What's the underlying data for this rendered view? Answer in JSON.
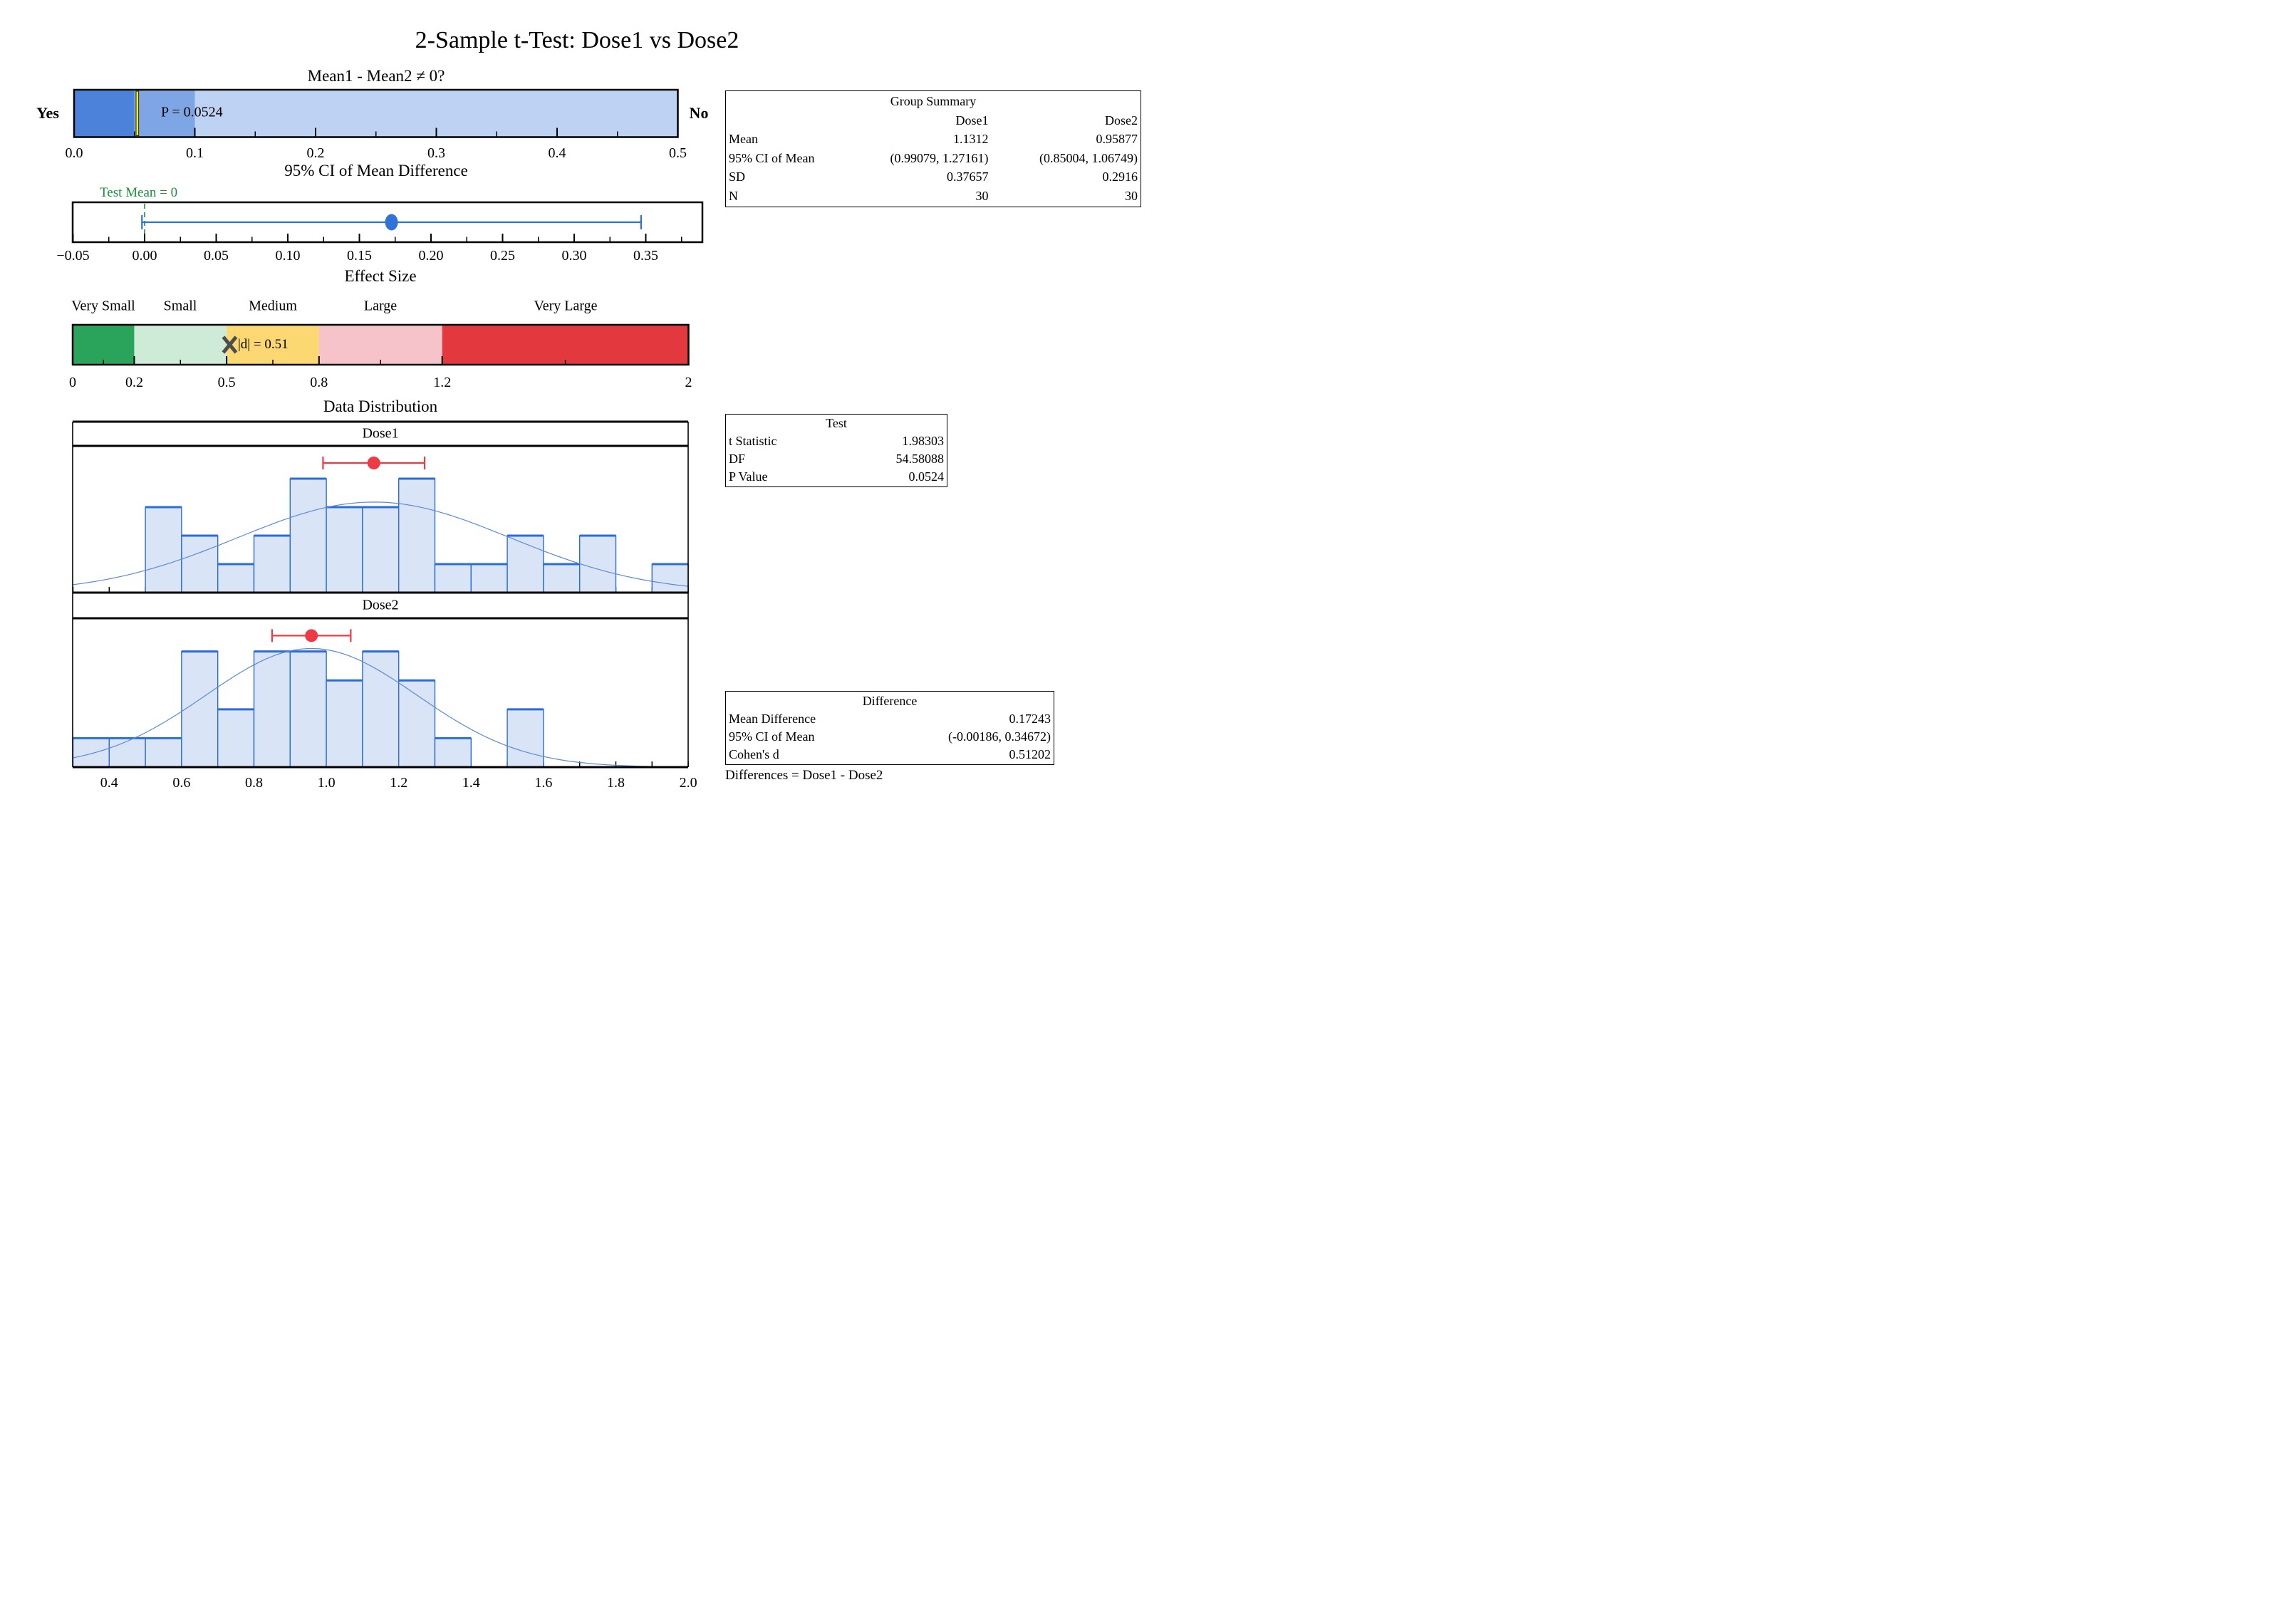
{
  "title": "2-Sample t-Test: Dose1 vs Dose2",
  "distribution": {
    "title": "Data Distribution",
    "x_tick_values": [
      0.4,
      0.6,
      0.8,
      1.0,
      1.2,
      1.4,
      1.6,
      1.8,
      2.0
    ],
    "x_tick_labels": [
      "0.4",
      "0.6",
      "0.8",
      "1.0",
      "1.2",
      "1.4",
      "1.6",
      "1.8",
      "2.0"
    ],
    "minor_tick_step": 0.1
  },
  "colors": {
    "histogram_fill": "#d9e5f7",
    "histogram_edge": "#2a6cd8",
    "normal_curve": "#5b89dd",
    "mean_marker": "#ee3a44",
    "axis": "#000000"
  },
  "chart_data": [
    {
      "type": "scale-bar",
      "name": "p-value-decision-bar",
      "title": "Mean1 - Mean2 ≠ 0?",
      "left_label": "Yes",
      "right_label": "No",
      "xlim": [
        0,
        0.5
      ],
      "marker_value": 0.0524,
      "marker_label": "P = 0.0524",
      "marker_color": "#fdff00",
      "major_ticks": [
        0,
        0.1,
        0.2,
        0.3,
        0.4,
        0.5
      ],
      "tick_labels": [
        "0.0",
        "0.1",
        "0.2",
        "0.3",
        "0.4",
        "0.5"
      ],
      "minor_ticks": [
        0.05,
        0.15,
        0.25,
        0.35,
        0.45
      ],
      "segments": [
        {
          "from": 0,
          "to": 0.05,
          "color": "#4d82da"
        },
        {
          "from": 0.05,
          "to": 0.1,
          "color": "#7fa6e4"
        },
        {
          "from": 0.1,
          "to": 0.5,
          "color": "#bed3f4"
        }
      ]
    },
    {
      "type": "interval",
      "name": "ci-of-mean-difference",
      "title": "95% CI of Mean Difference",
      "ref_label": "Test Mean = 0",
      "ref_value": 0,
      "ref_color": "#169339",
      "mean": 0.17243,
      "ci": [
        -0.00186,
        0.34672
      ],
      "color": "#2e74d8",
      "ticks": [
        -0.05,
        0,
        0.05,
        0.1,
        0.15,
        0.2,
        0.25,
        0.3,
        0.35
      ],
      "tick_labels": [
        "−0.05",
        "0.00",
        "0.05",
        "0.10",
        "0.15",
        "0.20",
        "0.25",
        "0.30",
        "0.35"
      ],
      "minor_ticks": [
        -0.025,
        0.025,
        0.075,
        0.125,
        0.175,
        0.225,
        0.275,
        0.325,
        0.375
      ]
    },
    {
      "type": "category-scale",
      "name": "effect-size-scale",
      "title": "Effect Size",
      "marker_value": 0.51,
      "marker_label": "|d| = 0.51",
      "marker_color": "#4d4d4d",
      "xlim": [
        0,
        2
      ],
      "ticks": [
        0,
        0.2,
        0.5,
        0.8,
        1.2,
        2
      ],
      "tick_labels": [
        "0",
        "0.2",
        "0.5",
        "0.8",
        "1.2",
        "2"
      ],
      "minor_ticks": [
        0.1,
        0.35,
        0.65,
        1.0,
        1.6
      ],
      "categories": [
        {
          "label": "Very Small",
          "from": 0,
          "to": 0.2,
          "color": "#2aa45b"
        },
        {
          "label": "Small",
          "from": 0.2,
          "to": 0.5,
          "color": "#cdebd6"
        },
        {
          "label": "Medium",
          "from": 0.5,
          "to": 0.8,
          "color": "#fbd871"
        },
        {
          "label": "Large",
          "from": 0.8,
          "to": 1.2,
          "color": "#f6c3ca"
        },
        {
          "label": "Very Large",
          "from": 1.2,
          "to": 2,
          "color": "#e4383f"
        }
      ]
    },
    {
      "type": "histogram",
      "name": "dose1-distribution",
      "group": "Dose1",
      "n": 30,
      "mean": 1.1312,
      "sd": 0.37657,
      "mean_ci": [
        0.99079,
        1.27161
      ],
      "bin_start": 0.5,
      "bin_width": 0.1,
      "counts": [
        3,
        2,
        1,
        2,
        4,
        3,
        3,
        4,
        1,
        1,
        2,
        1,
        2,
        0,
        1
      ],
      "xlim": [
        0.3,
        2.0
      ],
      "ylim": [
        0,
        5.15
      ],
      "marker_height": 4.55
    },
    {
      "type": "histogram",
      "name": "dose2-distribution",
      "group": "Dose2",
      "n": 30,
      "mean": 0.95877,
      "sd": 0.2916,
      "mean_ci": [
        0.85004,
        1.06749
      ],
      "bin_start": 0.3,
      "bin_width": 0.1,
      "counts": [
        1,
        1,
        1,
        4,
        2,
        4,
        4,
        3,
        4,
        3,
        1,
        0,
        2
      ],
      "xlim": [
        0.3,
        2.0
      ],
      "ylim": [
        0,
        5.15
      ],
      "marker_height": 4.55
    }
  ],
  "tables": {
    "group_summary": {
      "title": "Group Summary",
      "col_headers": [
        "",
        "Dose1",
        "Dose2"
      ],
      "rows": [
        [
          "Mean",
          "1.1312",
          "0.95877"
        ],
        [
          "95% CI of Mean",
          "(0.99079, 1.27161)",
          "(0.85004, 1.06749)"
        ],
        [
          "SD",
          "0.37657",
          "0.2916"
        ],
        [
          "N",
          "30",
          "30"
        ]
      ]
    },
    "test": {
      "title": "Test",
      "rows": [
        [
          "t Statistic",
          "1.98303"
        ],
        [
          "DF",
          "54.58088"
        ],
        [
          "P Value",
          "0.0524"
        ]
      ]
    },
    "difference": {
      "title": "Difference",
      "rows": [
        [
          "Mean Difference",
          "0.17243"
        ],
        [
          "95% CI of Mean",
          "(-0.00186, 0.34672)"
        ],
        [
          "Cohen's d",
          "0.51202"
        ]
      ],
      "footnote": "Differences = Dose1 - Dose2"
    }
  }
}
